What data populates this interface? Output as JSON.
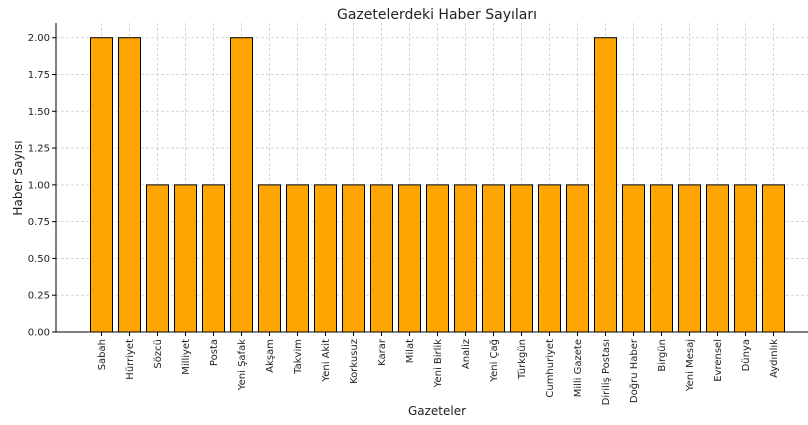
{
  "chart_data": {
    "type": "bar",
    "title": "Gazetelerdeki Haber Sayıları",
    "xlabel": "Gazeteler",
    "ylabel": "Haber Sayısı",
    "categories": [
      "Sabah",
      "Hürriyet",
      "Sözcü",
      "Milliyet",
      "Posta",
      "Yeni Şafak",
      "Akşam",
      "Takvim",
      "Yeni Akit",
      "Korkusuz",
      "Karar",
      "Milat",
      "Yeni Birlik",
      "Analiz",
      "Yeni Çağ",
      "Türkgün",
      "Cumhuriyet",
      "Milli Gazete",
      "Diriliş Postası",
      "Doğru Haber",
      "Birgün",
      "Yeni Mesaj",
      "Evrensel",
      "Dünya",
      "Aydınlık"
    ],
    "values": [
      2,
      2,
      1,
      1,
      1,
      2,
      1,
      1,
      1,
      1,
      1,
      1,
      1,
      1,
      1,
      1,
      1,
      1,
      2,
      1,
      1,
      1,
      1,
      1,
      1
    ],
    "ylim": [
      0,
      2.1
    ],
    "yticks": [
      0.0,
      0.25,
      0.5,
      0.75,
      1.0,
      1.25,
      1.5,
      1.75,
      2.0
    ],
    "grid": true,
    "colors": {
      "bar_fill": "#FFA500",
      "bar_edge": "#000000",
      "grid": "#cccccc",
      "axis": "#000000"
    }
  }
}
